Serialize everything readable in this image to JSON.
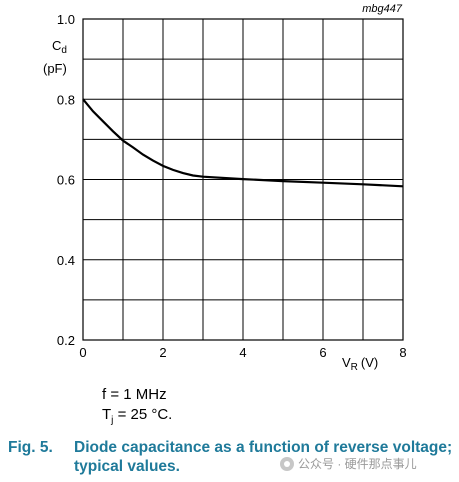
{
  "chart_data": {
    "type": "line",
    "code": "mbg447",
    "ylabel": {
      "symbol": "C",
      "sub": "d",
      "unit": "(pF)"
    },
    "xlabel": {
      "symbol": "V",
      "sub": "R",
      "unit": "(V)"
    },
    "xlim": [
      0,
      8
    ],
    "ylim": [
      0.2,
      1.0
    ],
    "x_ticks": [
      "0",
      "2",
      "4",
      "6",
      "8"
    ],
    "y_ticks": [
      "0.2",
      "0.4",
      "0.6",
      "0.8",
      "1.0"
    ],
    "grid": true,
    "series": [
      {
        "x": [
          0,
          0.25,
          0.5,
          0.75,
          1.0,
          1.25,
          1.5,
          1.75,
          2.0,
          2.25,
          2.5,
          2.75,
          3.0,
          4.0,
          5.0,
          6.0,
          7.0,
          8.0
        ],
        "y": [
          0.8,
          0.77,
          0.745,
          0.72,
          0.697,
          0.68,
          0.662,
          0.647,
          0.634,
          0.624,
          0.616,
          0.61,
          0.607,
          0.601,
          0.596,
          0.592,
          0.588,
          0.583
        ]
      }
    ]
  },
  "conditions": {
    "freq": "f = 1 MHz",
    "temp_prefix": "T",
    "temp_sub": "j",
    "temp_suffix": " = 25 °C."
  },
  "caption": {
    "fig": "Fig. 5.",
    "text": "Diode capacitance as a function of reverse voltage; typical values."
  },
  "watermark": "公众号 · 硬件那点事儿"
}
